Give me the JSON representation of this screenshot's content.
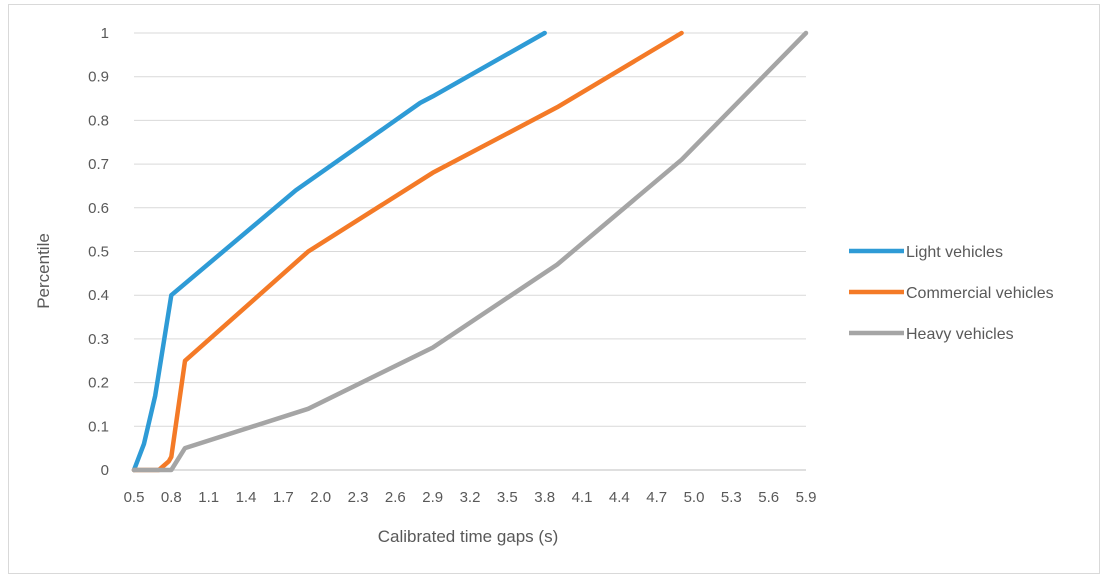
{
  "chart_data": {
    "type": "line",
    "title": "",
    "xlabel": "Calibrated time gaps (s)",
    "ylabel": "Percentile",
    "xlim": [
      0.5,
      5.9
    ],
    "ylim": [
      0,
      1
    ],
    "x_ticks": [
      "0.5",
      "0.8",
      "1.1",
      "1.4",
      "1.7",
      "2.0",
      "2.3",
      "2.6",
      "2.9",
      "3.2",
      "3.5",
      "3.8",
      "4.1",
      "4.4",
      "4.7",
      "5.0",
      "5.3",
      "5.6",
      "5.9"
    ],
    "y_ticks": [
      "0",
      "0.1",
      "0.2",
      "0.3",
      "0.4",
      "0.5",
      "0.6",
      "0.7",
      "0.8",
      "0.9",
      "1"
    ],
    "grid": "horizontal",
    "legend_position": "right",
    "series": [
      {
        "name": "Light vehicles",
        "color": "#2e9bd6",
        "points": [
          [
            0.5,
            0
          ],
          [
            0.58,
            0.06
          ],
          [
            0.67,
            0.17
          ],
          [
            0.8,
            0.4
          ],
          [
            1.8,
            0.64
          ],
          [
            2.8,
            0.84
          ],
          [
            2.9,
            0.855
          ],
          [
            3.8,
            1.0
          ]
        ]
      },
      {
        "name": "Commercial vehicles",
        "color": "#f47a27",
        "points": [
          [
            0.5,
            0
          ],
          [
            0.7,
            0
          ],
          [
            0.78,
            0.02
          ],
          [
            0.8,
            0.03
          ],
          [
            0.91,
            0.25
          ],
          [
            1.9,
            0.5
          ],
          [
            2.9,
            0.68
          ],
          [
            3.9,
            0.83
          ],
          [
            4.9,
            1.0
          ]
        ]
      },
      {
        "name": "Heavy vehicles",
        "color": "#a5a5a5",
        "points": [
          [
            0.5,
            0
          ],
          [
            0.8,
            0
          ],
          [
            0.91,
            0.05
          ],
          [
            1.9,
            0.14
          ],
          [
            2.9,
            0.28
          ],
          [
            3.9,
            0.47
          ],
          [
            4.9,
            0.71
          ],
          [
            5.9,
            1.0
          ]
        ]
      }
    ]
  }
}
